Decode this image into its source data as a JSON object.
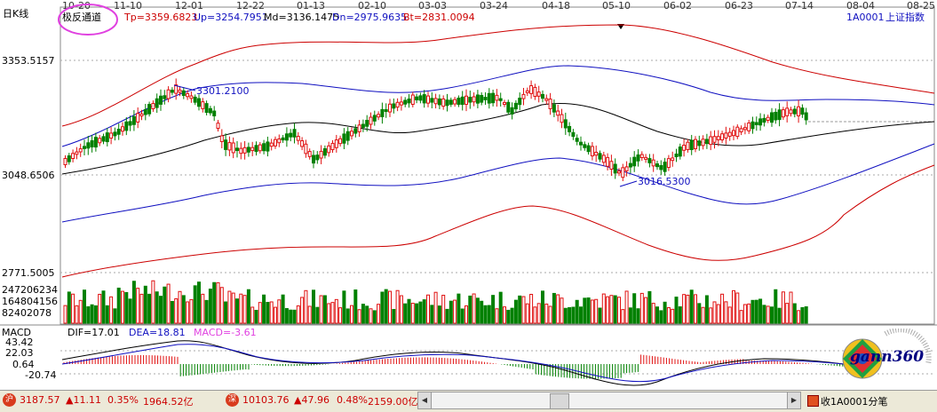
{
  "header": {
    "period_label": "日K线",
    "indicator_name": "极反通道",
    "tp": "Tp=3359.6823",
    "up": "Up=3254.7951",
    "md": "Md=3136.1475",
    "dn": "Dn=2975.9635",
    "bt": "Bt=2831.0094",
    "symbol": "1A0001",
    "symbol_name": "上证指数"
  },
  "date_ticks": [
    "10-20",
    "11-10",
    "12-01",
    "12-22",
    "01-13",
    "02-10",
    "03-03",
    "03-24",
    "04-18",
    "05-10",
    "06-02",
    "06-23",
    "07-14",
    "08-04",
    "08-25"
  ],
  "price_axis": [
    "3353.5157",
    "3048.6506",
    "2771.5005"
  ],
  "annotations": {
    "high": "3301.2100",
    "low": "3016.5300"
  },
  "volume_axis": [
    "247206234",
    "164804156",
    "82402078"
  ],
  "macd": {
    "title": "MACD",
    "dif": "DIF=17.01",
    "dea": "DEA=18.81",
    "macd": "MACD=-3.61",
    "axis": [
      "43.42",
      "22.03",
      "0.64",
      "-20.74"
    ]
  },
  "status": {
    "sh_icon": "沪",
    "sh_index": "3187.57",
    "sh_change": "▲11.11",
    "sh_pct": "0.35%",
    "sh_amount": "1964.52亿",
    "sz_icon": "深",
    "sz_index": "10103.76",
    "sz_change": "▲47.96",
    "sz_pct": "0.48%",
    "sz_amount": "2159.00亿",
    "right_text": "收1A0001分笔"
  },
  "logo": {
    "text": "gann360"
  },
  "colors": {
    "up": "#e01010",
    "down": "#008000",
    "band_outer": "#cc0000",
    "band_inner": "#1010c0",
    "mid": "#000000",
    "highlight": "#e040e0"
  }
}
